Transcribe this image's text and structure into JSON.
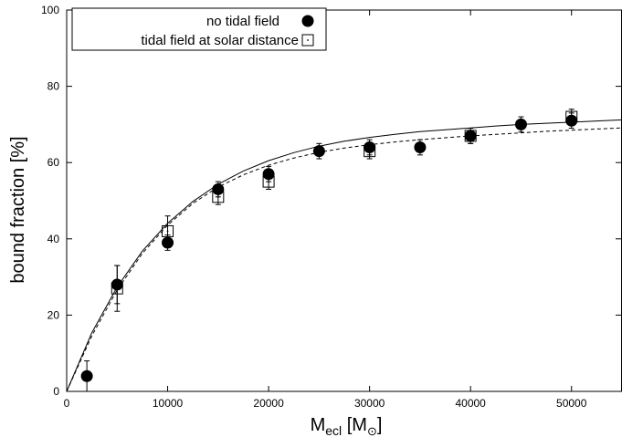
{
  "chart_data": {
    "type": "scatter",
    "ylabel": "bound fraction [%]",
    "xlabel": {
      "main": "M",
      "sub": "ecl",
      "unit_open": " [M",
      "unit_symbol": "⊙",
      "unit_close": "]"
    },
    "xlim": [
      0,
      55000
    ],
    "ylim": [
      0,
      100
    ],
    "x_ticks": [
      0,
      10000,
      20000,
      30000,
      40000,
      50000
    ],
    "y_ticks": [
      0,
      20,
      40,
      60,
      80,
      100
    ],
    "legend_position": "top-left",
    "grid": false,
    "series": [
      {
        "name": "no tidal field",
        "marker": "filled-circle",
        "x": [
          2000,
          5000,
          10000,
          15000,
          20000,
          25000,
          30000,
          35000,
          40000,
          45000,
          50000
        ],
        "y": [
          4,
          28,
          39,
          53,
          57,
          63,
          64,
          64,
          67,
          70,
          71
        ],
        "err": [
          4,
          5,
          2,
          2,
          2,
          2,
          2,
          2,
          2,
          2,
          2
        ],
        "fit_line": "solid"
      },
      {
        "name": "tidal field at solar distance",
        "marker": "open-square",
        "x": [
          5000,
          10000,
          15000,
          20000,
          30000,
          40000,
          50000
        ],
        "y": [
          27,
          42,
          51,
          55,
          63,
          67,
          72
        ],
        "err": [
          6,
          4,
          2,
          2,
          2,
          2,
          2
        ],
        "fit_line": "dashed"
      }
    ],
    "fit_curves": [
      {
        "style": "solid",
        "x": [
          0,
          2500,
          5000,
          7500,
          10000,
          12500,
          15000,
          17500,
          20000,
          22500,
          25000,
          27500,
          30000,
          32500,
          35000,
          37500,
          40000,
          42500,
          45000,
          47500,
          50000,
          52500,
          55000
        ],
        "y": [
          0,
          15.4,
          27.4,
          36.8,
          44.1,
          49.8,
          54.3,
          57.8,
          60.5,
          62.6,
          64.3,
          65.6,
          66.6,
          67.4,
          68.1,
          68.6,
          69.1,
          69.6,
          70.0,
          70.3,
          70.6,
          70.9,
          71.2
        ]
      },
      {
        "style": "dashed",
        "x": [
          0,
          2500,
          5000,
          7500,
          10000,
          12500,
          15000,
          17500,
          20000,
          22500,
          25000,
          27500,
          30000,
          32500,
          35000,
          37500,
          40000,
          42500,
          45000,
          47500,
          50000,
          52500,
          55000
        ],
        "y": [
          0,
          14.6,
          26.6,
          36.2,
          43.6,
          49.3,
          53.6,
          56.8,
          59.3,
          61.2,
          62.7,
          63.8,
          64.7,
          65.4,
          66.0,
          66.5,
          67.0,
          67.4,
          67.8,
          68.2,
          68.5,
          68.8,
          69.1
        ]
      }
    ]
  }
}
